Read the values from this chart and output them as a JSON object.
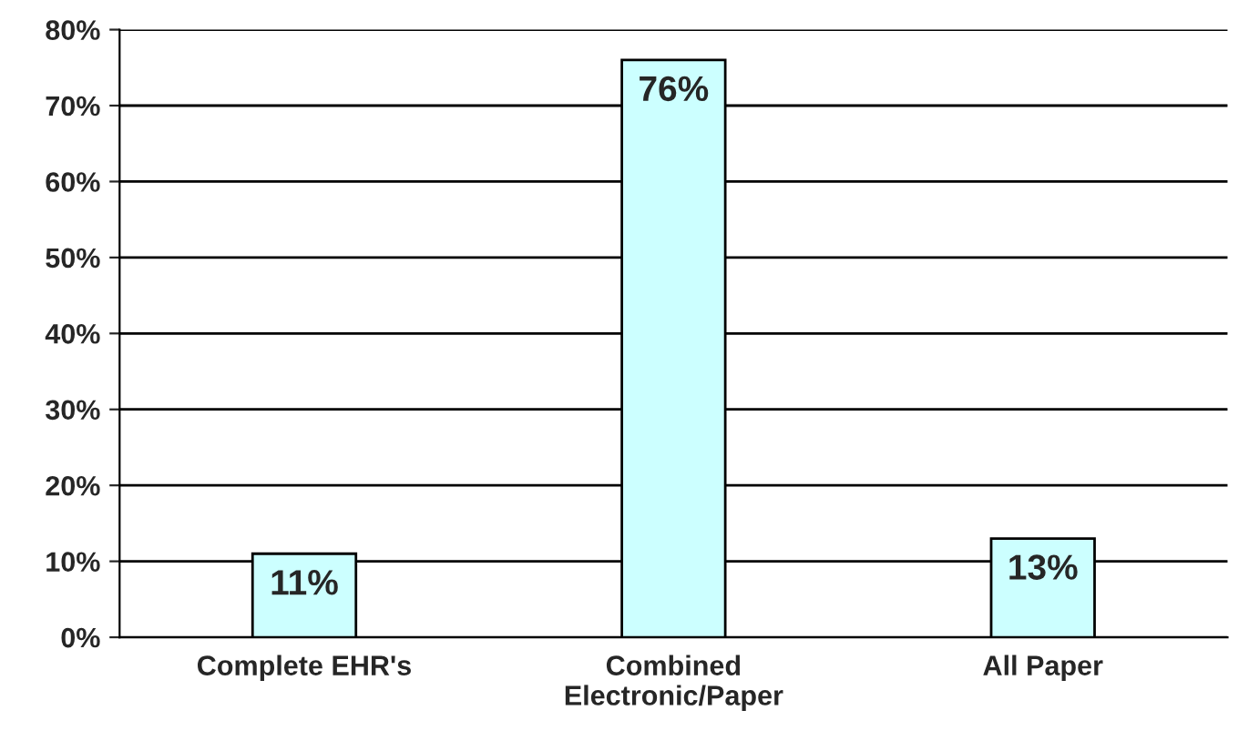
{
  "chart_data": {
    "type": "bar",
    "categories": [
      "Complete EHR's",
      "Combined\nElectronic/Paper",
      "All Paper"
    ],
    "values": [
      11,
      76,
      13
    ],
    "value_labels": [
      "11%",
      "76%",
      "13%"
    ],
    "color": "#ccffff",
    "ylim": [
      0,
      80
    ],
    "yticks": [
      {
        "value": 0,
        "label": "0%"
      },
      {
        "value": 10,
        "label": "10%"
      },
      {
        "value": 20,
        "label": "20%"
      },
      {
        "value": 30,
        "label": "30%"
      },
      {
        "value": 40,
        "label": "40%"
      },
      {
        "value": 50,
        "label": "50%"
      },
      {
        "value": 60,
        "label": "60%"
      },
      {
        "value": 70,
        "label": "70%"
      },
      {
        "value": 80,
        "label": "80%"
      }
    ],
    "grid": "y",
    "legend": false
  }
}
